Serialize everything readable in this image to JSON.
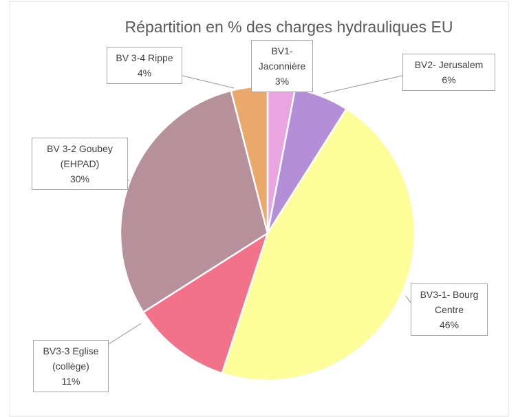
{
  "chart_data": {
    "type": "pie",
    "title": "Répartition en % des charges hydrauliques EU",
    "categories": [
      "BV1-Jaconnière",
      "BV2- Jerusalem",
      "BV3-1- Bourg Centre",
      "BV3-3 Eglise (collège)",
      "BV 3-2 Goubey (EHPAD)",
      "BV 3-4 Rippe"
    ],
    "values": [
      3,
      6,
      46,
      11,
      30,
      4
    ],
    "value_labels": [
      "3%",
      "6%",
      "46%",
      "11%",
      "30%",
      "4%"
    ],
    "colors": [
      "#eaa5e0",
      "#b48fd8",
      "#fdfd99",
      "#f27289",
      "#b6909a",
      "#eaa96a"
    ]
  }
}
